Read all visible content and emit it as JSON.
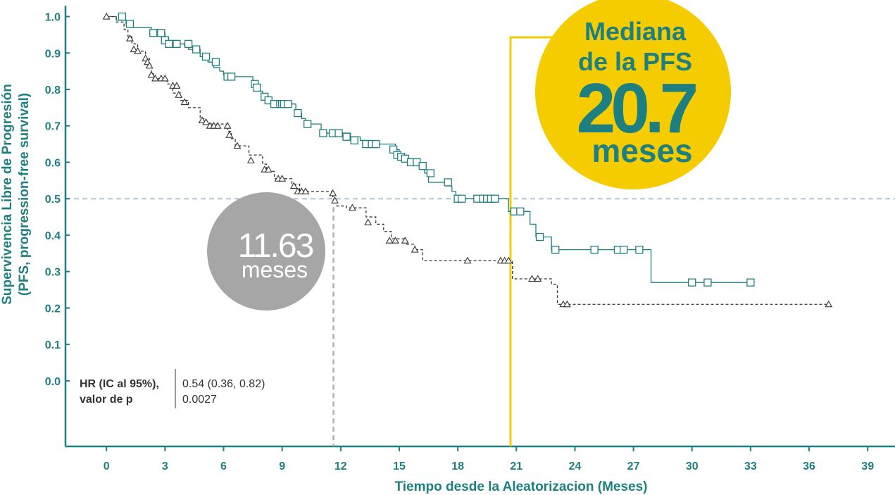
{
  "chart_data": {
    "type": "line",
    "xlabel": "Tiempo desde la Aleatorizacion (Meses)",
    "ylabel_line1": "Supervivencia Libre de Progresión",
    "ylabel_line2": "(PFS, progression-free survival)",
    "xlim": [
      -2.1,
      40.4
    ],
    "ylim": [
      -0.18,
      1.03
    ],
    "x_ticks": [
      0,
      3,
      6,
      9,
      12,
      15,
      18,
      21,
      24,
      27,
      30,
      33,
      36,
      39
    ],
    "y_ticks": [
      {
        "value": 1.0,
        "label": "1.0"
      },
      {
        "value": 0.9,
        "label": "0.9"
      },
      {
        "value": 0.8,
        "label": "0.8"
      },
      {
        "value": 0.7,
        "label": "0.7"
      },
      {
        "value": 0.6,
        "label": "0.6"
      },
      {
        "value": 0.5,
        "label": "0.5"
      },
      {
        "value": 0.4,
        "label": "0.4"
      },
      {
        "value": 0.3,
        "label": "0.3"
      },
      {
        "value": 0.2,
        "label": "0.2"
      },
      {
        "value": 0.1,
        "label": "0.1"
      },
      {
        "value": 0.0,
        "label": "0.0"
      }
    ],
    "reference_y": 0.5,
    "colors": {
      "teal": "#1e7f80",
      "black": "#333333",
      "yellow": "#f5cc00",
      "gray": "#a6a6a6",
      "refline": "#b4c4d2"
    },
    "series": [
      {
        "marker": "square",
        "color": "#1e7f80",
        "line_style": "solid",
        "steps": [
          [
            0,
            1.0
          ],
          [
            0.5,
            0.99
          ],
          [
            1.0,
            0.98
          ],
          [
            1.3,
            0.97
          ],
          [
            2.3,
            0.955
          ],
          [
            3.0,
            0.935
          ],
          [
            3.2,
            0.925
          ],
          [
            4.0,
            0.92
          ],
          [
            4.2,
            0.91
          ],
          [
            4.8,
            0.89
          ],
          [
            5.2,
            0.875
          ],
          [
            5.5,
            0.86
          ],
          [
            5.8,
            0.85
          ],
          [
            6.0,
            0.84
          ],
          [
            6.3,
            0.835
          ],
          [
            7.5,
            0.815
          ],
          [
            7.8,
            0.795
          ],
          [
            8.0,
            0.78
          ],
          [
            8.3,
            0.765
          ],
          [
            8.5,
            0.76
          ],
          [
            9.7,
            0.735
          ],
          [
            10.0,
            0.72
          ],
          [
            10.2,
            0.705
          ],
          [
            11.0,
            0.68
          ],
          [
            12.5,
            0.67
          ],
          [
            13.0,
            0.66
          ],
          [
            13.5,
            0.65
          ],
          [
            14.8,
            0.635
          ],
          [
            15.0,
            0.62
          ],
          [
            15.2,
            0.61
          ],
          [
            15.5,
            0.6
          ],
          [
            16.0,
            0.59
          ],
          [
            16.3,
            0.57
          ],
          [
            16.5,
            0.545
          ],
          [
            17.4,
            0.535
          ],
          [
            17.7,
            0.52
          ],
          [
            17.9,
            0.5
          ],
          [
            20.6,
            0.465
          ],
          [
            21.7,
            0.43
          ],
          [
            22.0,
            0.395
          ],
          [
            22.8,
            0.36
          ],
          [
            27.9,
            0.27
          ]
        ],
        "end_x": 33.0,
        "censors": [
          [
            0.8,
            1.0
          ],
          [
            1.2,
            0.98
          ],
          [
            2.4,
            0.955
          ],
          [
            2.8,
            0.955
          ],
          [
            3.0,
            0.935
          ],
          [
            3.2,
            0.925
          ],
          [
            3.6,
            0.925
          ],
          [
            4.2,
            0.925
          ],
          [
            4.6,
            0.91
          ],
          [
            5.1,
            0.89
          ],
          [
            5.6,
            0.875
          ],
          [
            6.2,
            0.835
          ],
          [
            6.4,
            0.835
          ],
          [
            7.6,
            0.815
          ],
          [
            7.7,
            0.805
          ],
          [
            8.1,
            0.78
          ],
          [
            8.3,
            0.77
          ],
          [
            8.6,
            0.76
          ],
          [
            8.9,
            0.76
          ],
          [
            9.0,
            0.76
          ],
          [
            9.1,
            0.76
          ],
          [
            9.3,
            0.76
          ],
          [
            9.8,
            0.735
          ],
          [
            10.3,
            0.705
          ],
          [
            11.1,
            0.68
          ],
          [
            11.6,
            0.68
          ],
          [
            11.9,
            0.68
          ],
          [
            12.3,
            0.67
          ],
          [
            12.7,
            0.66
          ],
          [
            13.3,
            0.65
          ],
          [
            13.6,
            0.65
          ],
          [
            13.8,
            0.65
          ],
          [
            14.7,
            0.635
          ],
          [
            14.9,
            0.62
          ],
          [
            15.1,
            0.615
          ],
          [
            15.3,
            0.61
          ],
          [
            15.6,
            0.6
          ],
          [
            15.9,
            0.6
          ],
          [
            16.2,
            0.59
          ],
          [
            16.6,
            0.57
          ],
          [
            17.5,
            0.545
          ],
          [
            18.0,
            0.5
          ],
          [
            18.2,
            0.5
          ],
          [
            19.0,
            0.5
          ],
          [
            19.3,
            0.5
          ],
          [
            19.5,
            0.5
          ],
          [
            19.7,
            0.5
          ],
          [
            19.9,
            0.5
          ],
          [
            20.9,
            0.465
          ],
          [
            21.2,
            0.465
          ],
          [
            22.2,
            0.395
          ],
          [
            23.0,
            0.36
          ],
          [
            25.0,
            0.36
          ],
          [
            26.2,
            0.36
          ],
          [
            26.5,
            0.36
          ],
          [
            27.3,
            0.36
          ],
          [
            30.0,
            0.27
          ],
          [
            30.8,
            0.27
          ],
          [
            33.0,
            0.27
          ]
        ]
      },
      {
        "marker": "triangle",
        "color": "#333333",
        "line_style": "dashed",
        "steps": [
          [
            0,
            1.0
          ],
          [
            0.5,
            0.985
          ],
          [
            0.9,
            0.965
          ],
          [
            1.1,
            0.945
          ],
          [
            1.3,
            0.925
          ],
          [
            1.6,
            0.905
          ],
          [
            2.0,
            0.885
          ],
          [
            2.2,
            0.865
          ],
          [
            2.3,
            0.845
          ],
          [
            2.4,
            0.83
          ],
          [
            3.1,
            0.815
          ],
          [
            3.4,
            0.79
          ],
          [
            3.8,
            0.77
          ],
          [
            4.2,
            0.75
          ],
          [
            4.8,
            0.72
          ],
          [
            5.1,
            0.705
          ],
          [
            6.2,
            0.685
          ],
          [
            6.4,
            0.665
          ],
          [
            6.6,
            0.645
          ],
          [
            7.3,
            0.62
          ],
          [
            8.0,
            0.595
          ],
          [
            8.2,
            0.575
          ],
          [
            8.6,
            0.555
          ],
          [
            9.5,
            0.54
          ],
          [
            9.9,
            0.52
          ],
          [
            11.6,
            0.5
          ],
          [
            11.8,
            0.48
          ],
          [
            12.3,
            0.475
          ],
          [
            13.3,
            0.45
          ],
          [
            13.8,
            0.43
          ],
          [
            14.2,
            0.41
          ],
          [
            14.6,
            0.39
          ],
          [
            15.3,
            0.375
          ],
          [
            15.8,
            0.36
          ],
          [
            16.2,
            0.33
          ],
          [
            20.8,
            0.28
          ],
          [
            22.8,
            0.265
          ],
          [
            23.1,
            0.21
          ]
        ],
        "end_x": 37.0,
        "censors": [
          [
            0,
            1.0
          ],
          [
            1.2,
            0.94
          ],
          [
            1.4,
            0.91
          ],
          [
            1.6,
            0.905
          ],
          [
            2.0,
            0.885
          ],
          [
            2.1,
            0.875
          ],
          [
            2.2,
            0.865
          ],
          [
            2.3,
            0.84
          ],
          [
            2.5,
            0.83
          ],
          [
            2.8,
            0.83
          ],
          [
            3.0,
            0.83
          ],
          [
            3.4,
            0.81
          ],
          [
            3.6,
            0.81
          ],
          [
            3.7,
            0.785
          ],
          [
            4.0,
            0.765
          ],
          [
            4.9,
            0.715
          ],
          [
            5.1,
            0.71
          ],
          [
            5.3,
            0.7
          ],
          [
            5.5,
            0.7
          ],
          [
            5.7,
            0.7
          ],
          [
            6.2,
            0.7
          ],
          [
            6.3,
            0.675
          ],
          [
            6.7,
            0.645
          ],
          [
            7.4,
            0.605
          ],
          [
            8.1,
            0.58
          ],
          [
            8.3,
            0.58
          ],
          [
            8.8,
            0.555
          ],
          [
            9.0,
            0.555
          ],
          [
            9.6,
            0.535
          ],
          [
            9.8,
            0.52
          ],
          [
            10.0,
            0.52
          ],
          [
            10.2,
            0.52
          ],
          [
            11.6,
            0.515
          ],
          [
            11.7,
            0.495
          ],
          [
            12.6,
            0.475
          ],
          [
            13.4,
            0.435
          ],
          [
            14.5,
            0.385
          ],
          [
            14.8,
            0.385
          ],
          [
            15.3,
            0.385
          ],
          [
            15.8,
            0.36
          ],
          [
            18.5,
            0.33
          ],
          [
            20.2,
            0.33
          ],
          [
            20.4,
            0.33
          ],
          [
            20.6,
            0.33
          ],
          [
            21.8,
            0.28
          ],
          [
            22.1,
            0.28
          ],
          [
            23.4,
            0.21
          ],
          [
            23.6,
            0.21
          ],
          [
            37.0,
            0.21
          ]
        ]
      }
    ],
    "medians": [
      {
        "x": 11.63,
        "color": "#a6a6a6",
        "value_label": "11.63",
        "unit_label": "meses"
      },
      {
        "x": 20.7,
        "color": "#f5cc00",
        "title_line1": "Mediana",
        "title_line2": "de la PFS",
        "value_label": "20.7",
        "unit_label": "meses"
      }
    ],
    "stats": {
      "label_line1": "HR (IC al 95%),",
      "label_line2": "valor de p",
      "value_line1": "0.54 (0.36, 0.82)",
      "value_line2": "0.0027"
    }
  }
}
